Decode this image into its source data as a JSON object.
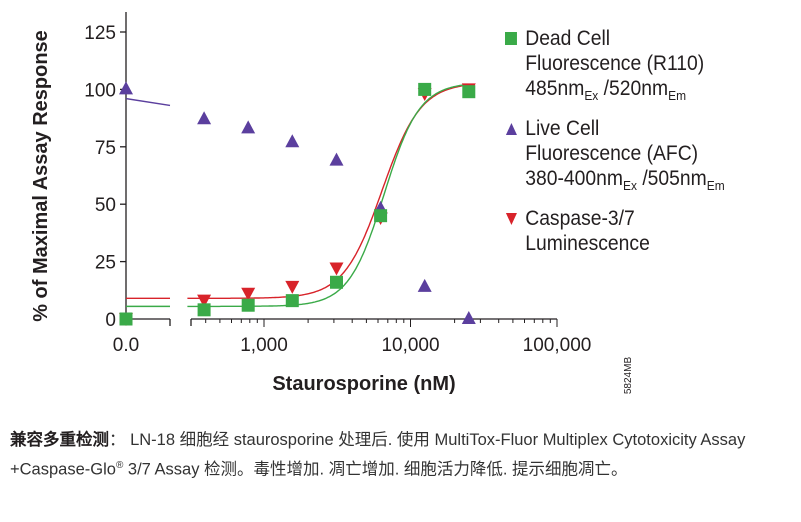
{
  "chart_data": {
    "type": "scatter",
    "title": "",
    "xlabel": "Staurosporine (nM)",
    "ylabel": "% of Maximal Assay Response",
    "xscale": "log with broken axis at zero",
    "xlim": [
      300,
      100000
    ],
    "ylim": [
      0,
      125
    ],
    "y_ticks": [
      "0",
      "25",
      "50",
      "75",
      "100",
      "125"
    ],
    "x_tick_labels": [
      "0.0",
      "1,000",
      "10,000",
      "100,000"
    ],
    "x": [
      0,
      390,
      780,
      1560,
      3125,
      6250,
      12500,
      25000
    ],
    "series": [
      {
        "name": "Dead Cell Fluorescence (R110)",
        "marker": "square",
        "color": "#3aaa48",
        "values": [
          0,
          4,
          6,
          8,
          16,
          45,
          100,
          99
        ],
        "fit": {
          "bottom": 5.5,
          "top": 103,
          "ec50": 6600,
          "hill": 3.6
        }
      },
      {
        "name": "Live Cell Fluorescence (AFC)",
        "marker": "triangle-up",
        "color": "#5b3f9e",
        "values": [
          100,
          87,
          83,
          77,
          69,
          48,
          14,
          0
        ],
        "fit": {
          "bottom": -20,
          "top": 97,
          "ec50": 7500,
          "hill": 1.3
        }
      },
      {
        "name": "Caspase-3/7 Luminescence",
        "marker": "triangle-down",
        "color": "#d8232a",
        "values": [
          0,
          8,
          11,
          14,
          22,
          44,
          98,
          100
        ],
        "fit": {
          "bottom": 9,
          "top": 103,
          "ec50": 6400,
          "hill": 3.3
        }
      }
    ],
    "legend_position": "right"
  },
  "legend": [
    {
      "line1": "Dead Cell",
      "line2": "Fluorescence (R110)",
      "l3a": "485nm",
      "l3b": "Ex",
      "l3c": " /520nm",
      "l3d": "Em"
    },
    {
      "line1": "Live Cell",
      "line2": "Fluorescence (AFC)",
      "l3a": "380-400nm",
      "l3b": "Ex",
      "l3c": " /505nm",
      "l3d": "Em"
    },
    {
      "line1": "Caspase-3/7",
      "line2": "Luminescence"
    }
  ],
  "figure_id": "5824MB",
  "caption": {
    "bold": "兼容多重检测",
    "text1": "： LN-18 细胞经 staurosporine 处理后. 使用 MultiTox-Fluor Multiplex Cytotoxicity Assay +Caspase-Glo",
    "sup": "®",
    "text2": " 3/7 Assay 检测。毒性增加. 凋亡增加. 细胞活力降低. 提示细胞凋亡。"
  }
}
